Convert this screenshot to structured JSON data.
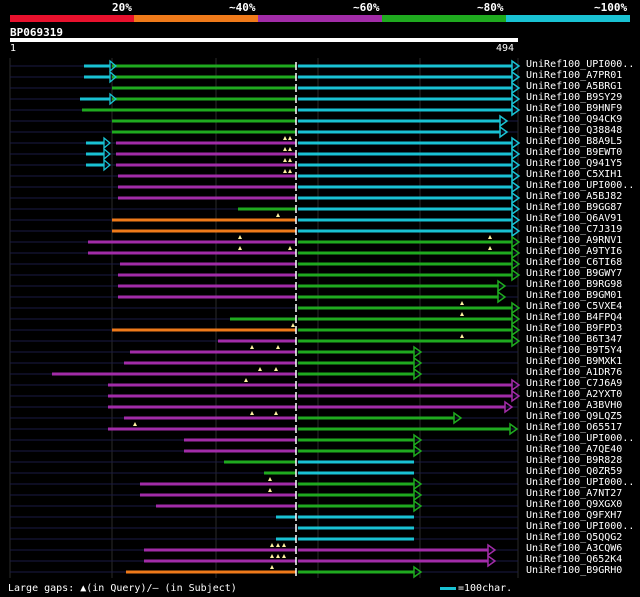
{
  "legend": {
    "items": [
      {
        "label": "20%",
        "color": "#e8112d"
      },
      {
        "label": "~40%",
        "color": "#ef7a1a"
      },
      {
        "label": "~60%",
        "color": "#a22ca8"
      },
      {
        "label": "~80%",
        "color": "#1faa1f"
      },
      {
        "label": "~100%",
        "color": "#19c2d3"
      }
    ]
  },
  "query": {
    "title": "BP069319",
    "start": "1",
    "end": "494"
  },
  "footer": {
    "text": "Large gaps: ▲(in Query)/– (in Subject)",
    "scale_text": "=100char."
  },
  "colors": {
    "background": "#000000",
    "guide": "#1a1a44",
    "grid": "#2a2a2a",
    "query_line": "#ffffff"
  },
  "hits": [
    {
      "label": "UniRef100_UPI000..",
      "segs": [
        [
          "#19c2d3",
          84,
          110
        ],
        [
          "#1faa1f",
          112,
          296
        ],
        [
          "#19c2d3",
          298,
          512
        ]
      ],
      "arrow": true,
      "gaps": []
    },
    {
      "label": "UniRef100_A7PR01",
      "segs": [
        [
          "#19c2d3",
          84,
          110
        ],
        [
          "#1faa1f",
          112,
          296
        ],
        [
          "#19c2d3",
          298,
          512
        ]
      ],
      "arrow": true,
      "gaps": []
    },
    {
      "label": "UniRef100_A5BRG1",
      "segs": [
        [
          "#1faa1f",
          112,
          296
        ],
        [
          "#19c2d3",
          298,
          512
        ]
      ],
      "arrow": true,
      "gaps": []
    },
    {
      "label": "UniRef100_B9SY29",
      "segs": [
        [
          "#19c2d3",
          80,
          110
        ],
        [
          "#1faa1f",
          112,
          296
        ],
        [
          "#19c2d3",
          298,
          512
        ]
      ],
      "arrow": true,
      "gaps": []
    },
    {
      "label": "UniRef100_B9HNF9",
      "segs": [
        [
          "#1faa1f",
          82,
          296
        ],
        [
          "#19c2d3",
          298,
          512
        ]
      ],
      "arrow": true,
      "gaps": []
    },
    {
      "label": "UniRef100_Q94CK9",
      "segs": [
        [
          "#1faa1f",
          112,
          296
        ],
        [
          "#19c2d3",
          298,
          500
        ]
      ],
      "arrow": true,
      "gaps": []
    },
    {
      "label": "UniRef100_Q38848",
      "segs": [
        [
          "#1faa1f",
          112,
          296
        ],
        [
          "#19c2d3",
          298,
          500
        ]
      ],
      "arrow": true,
      "gaps": []
    },
    {
      "label": "UniRef100_B8A9L5",
      "segs": [
        [
          "#19c2d3",
          86,
          104
        ],
        [
          "#a22ca8",
          116,
          296
        ],
        [
          "#19c2d3",
          298,
          512
        ]
      ],
      "arrow": true,
      "gaps": [
        285,
        290
      ]
    },
    {
      "label": "UniRef100_B9EWT0",
      "segs": [
        [
          "#19c2d3",
          86,
          104
        ],
        [
          "#a22ca8",
          116,
          296
        ],
        [
          "#19c2d3",
          298,
          512
        ]
      ],
      "arrow": true,
      "gaps": [
        285,
        290
      ]
    },
    {
      "label": "UniRef100_Q941Y5",
      "segs": [
        [
          "#19c2d3",
          86,
          104
        ],
        [
          "#a22ca8",
          116,
          296
        ],
        [
          "#19c2d3",
          298,
          512
        ]
      ],
      "arrow": true,
      "gaps": [
        285,
        290
      ]
    },
    {
      "label": "UniRef100_C5XIH1",
      "segs": [
        [
          "#a22ca8",
          118,
          296
        ],
        [
          "#19c2d3",
          298,
          512
        ]
      ],
      "arrow": true,
      "gaps": [
        285,
        290
      ]
    },
    {
      "label": "UniRef100_UPI000..",
      "segs": [
        [
          "#a22ca8",
          118,
          296
        ],
        [
          "#19c2d3",
          298,
          512
        ]
      ],
      "arrow": true,
      "gaps": []
    },
    {
      "label": "UniRef100_A5BJ82",
      "segs": [
        [
          "#a22ca8",
          118,
          296
        ],
        [
          "#19c2d3",
          298,
          512
        ]
      ],
      "arrow": true,
      "gaps": []
    },
    {
      "label": "UniRef100_B9GG87",
      "segs": [
        [
          "#1faa1f",
          238,
          296
        ],
        [
          "#19c2d3",
          298,
          512
        ]
      ],
      "arrow": true,
      "gaps": []
    },
    {
      "label": "UniRef100_Q6AV91",
      "segs": [
        [
          "#ef7a1a",
          112,
          296
        ],
        [
          "#19c2d3",
          298,
          512
        ]
      ],
      "arrow": true,
      "gaps": [
        278
      ]
    },
    {
      "label": "UniRef100_C7J319",
      "segs": [
        [
          "#ef7a1a",
          112,
          296
        ],
        [
          "#19c2d3",
          298,
          512
        ]
      ],
      "arrow": true,
      "gaps": []
    },
    {
      "label": "UniRef100_A9RNV1",
      "segs": [
        [
          "#a22ca8",
          88,
          296
        ],
        [
          "#1faa1f",
          298,
          512
        ]
      ],
      "arrow": true,
      "gaps": [
        240,
        490
      ]
    },
    {
      "label": "UniRef100_A9TYI6",
      "segs": [
        [
          "#a22ca8",
          88,
          296
        ],
        [
          "#1faa1f",
          298,
          512
        ]
      ],
      "arrow": true,
      "gaps": [
        240,
        290,
        490
      ]
    },
    {
      "label": "UniRef100_C6TI68",
      "segs": [
        [
          "#a22ca8",
          120,
          296
        ],
        [
          "#1faa1f",
          298,
          512
        ]
      ],
      "arrow": true,
      "gaps": []
    },
    {
      "label": "UniRef100_B9GWY7",
      "segs": [
        [
          "#a22ca8",
          118,
          296
        ],
        [
          "#1faa1f",
          298,
          512
        ]
      ],
      "arrow": true,
      "gaps": []
    },
    {
      "label": "UniRef100_B9RG98",
      "segs": [
        [
          "#a22ca8",
          118,
          296
        ],
        [
          "#1faa1f",
          298,
          498
        ]
      ],
      "arrow": true,
      "gaps": []
    },
    {
      "label": "UniRef100_B9GM01",
      "segs": [
        [
          "#a22ca8",
          118,
          296
        ],
        [
          "#1faa1f",
          298,
          498
        ]
      ],
      "arrow": true,
      "gaps": []
    },
    {
      "label": "UniRef100_C5VXE4",
      "segs": [
        [
          "#1faa1f",
          298,
          512
        ]
      ],
      "arrow": true,
      "gaps": [
        462
      ]
    },
    {
      "label": "UniRef100_B4FPQ4",
      "segs": [
        [
          "#1faa1f",
          230,
          296
        ],
        [
          "#1faa1f",
          298,
          512
        ]
      ],
      "arrow": true,
      "gaps": [
        462
      ]
    },
    {
      "label": "UniRef100_B9FPD3",
      "segs": [
        [
          "#ef7a1a",
          112,
          296
        ],
        [
          "#1faa1f",
          298,
          512
        ]
      ],
      "arrow": true,
      "gaps": [
        293
      ]
    },
    {
      "label": "UniRef100_B6T347",
      "segs": [
        [
          "#a22ca8",
          218,
          296
        ],
        [
          "#1faa1f",
          298,
          512
        ]
      ],
      "arrow": true,
      "gaps": [
        462
      ]
    },
    {
      "label": "UniRef100_B9T5Y4",
      "segs": [
        [
          "#a22ca8",
          130,
          296
        ],
        [
          "#1faa1f",
          298,
          414
        ]
      ],
      "arrow": true,
      "gaps": [
        252,
        278
      ]
    },
    {
      "label": "UniRef100_B9MXK1",
      "segs": [
        [
          "#a22ca8",
          124,
          296
        ],
        [
          "#1faa1f",
          298,
          414
        ]
      ],
      "arrow": true,
      "gaps": []
    },
    {
      "label": "UniRef100_A1DR76",
      "segs": [
        [
          "#a22ca8",
          52,
          296
        ],
        [
          "#1faa1f",
          298,
          414
        ]
      ],
      "arrow": true,
      "gaps": [
        260,
        276
      ]
    },
    {
      "label": "UniRef100_C7J6A9",
      "segs": [
        [
          "#a22ca8",
          108,
          296
        ],
        [
          "#a22ca8",
          298,
          512
        ]
      ],
      "arrow": true,
      "gaps": [
        246
      ]
    },
    {
      "label": "UniRef100_A2YXT0",
      "segs": [
        [
          "#a22ca8",
          108,
          296
        ],
        [
          "#a22ca8",
          298,
          512
        ]
      ],
      "arrow": true,
      "gaps": []
    },
    {
      "label": "UniRef100_A3BVH0",
      "segs": [
        [
          "#a22ca8",
          108,
          296
        ],
        [
          "#a22ca8",
          298,
          505
        ]
      ],
      "arrow": true,
      "gaps": []
    },
    {
      "label": "UniRef100_Q9LQZ5",
      "segs": [
        [
          "#a22ca8",
          124,
          296
        ],
        [
          "#1faa1f",
          298,
          454
        ]
      ],
      "arrow": true,
      "gaps": [
        252,
        276
      ]
    },
    {
      "label": "UniRef100_O65517",
      "segs": [
        [
          "#a22ca8",
          108,
          296
        ],
        [
          "#1faa1f",
          298,
          510
        ]
      ],
      "arrow": true,
      "gaps": [
        135
      ]
    },
    {
      "label": "UniRef100_UPI000..",
      "segs": [
        [
          "#a22ca8",
          184,
          296
        ],
        [
          "#1faa1f",
          298,
          414
        ]
      ],
      "arrow": true,
      "gaps": []
    },
    {
      "label": "UniRef100_A7QE40",
      "segs": [
        [
          "#a22ca8",
          184,
          296
        ],
        [
          "#1faa1f",
          298,
          414
        ]
      ],
      "arrow": true,
      "gaps": []
    },
    {
      "label": "UniRef100_B9R828",
      "segs": [
        [
          "#1faa1f",
          224,
          296
        ],
        [
          "#19c2d3",
          298,
          414
        ]
      ],
      "arrow": false,
      "gaps": []
    },
    {
      "label": "UniRef100_Q0ZR59",
      "segs": [
        [
          "#1faa1f",
          264,
          296
        ],
        [
          "#19c2d3",
          298,
          414
        ]
      ],
      "arrow": false,
      "gaps": []
    },
    {
      "label": "UniRef100_UPI000..",
      "segs": [
        [
          "#a22ca8",
          140,
          296
        ],
        [
          "#1faa1f",
          298,
          414
        ]
      ],
      "arrow": true,
      "gaps": [
        270
      ]
    },
    {
      "label": "UniRef100_A7NT27",
      "segs": [
        [
          "#a22ca8",
          140,
          296
        ],
        [
          "#1faa1f",
          298,
          414
        ]
      ],
      "arrow": true,
      "gaps": [
        270
      ]
    },
    {
      "label": "UniRef100_Q9XGX0",
      "segs": [
        [
          "#a22ca8",
          156,
          296
        ],
        [
          "#1faa1f",
          298,
          414
        ]
      ],
      "arrow": true,
      "gaps": []
    },
    {
      "label": "UniRef100_Q9FXH7",
      "segs": [
        [
          "#19c2d3",
          276,
          296
        ],
        [
          "#19c2d3",
          298,
          414
        ]
      ],
      "arrow": false,
      "gaps": []
    },
    {
      "label": "UniRef100_UPI000..",
      "segs": [
        [
          "#19c2d3",
          298,
          414
        ]
      ],
      "arrow": false,
      "gaps": []
    },
    {
      "label": "UniRef100_Q5QQG2",
      "segs": [
        [
          "#19c2d3",
          276,
          296
        ],
        [
          "#19c2d3",
          298,
          414
        ]
      ],
      "arrow": false,
      "gaps": []
    },
    {
      "label": "UniRef100_A3CQW6",
      "segs": [
        [
          "#a22ca8",
          144,
          296
        ],
        [
          "#a22ca8",
          298,
          488
        ]
      ],
      "arrow": true,
      "gaps": [
        272,
        278,
        284
      ]
    },
    {
      "label": "UniRef100_Q652K4",
      "segs": [
        [
          "#a22ca8",
          144,
          296
        ],
        [
          "#a22ca8",
          298,
          488
        ]
      ],
      "arrow": true,
      "gaps": [
        272,
        278,
        284
      ]
    },
    {
      "label": "UniRef100_B9GRH0",
      "segs": [
        [
          "#ef7a1a",
          126,
          296
        ],
        [
          "#1faa1f",
          298,
          414
        ]
      ],
      "arrow": true,
      "gaps": [
        272
      ]
    }
  ]
}
